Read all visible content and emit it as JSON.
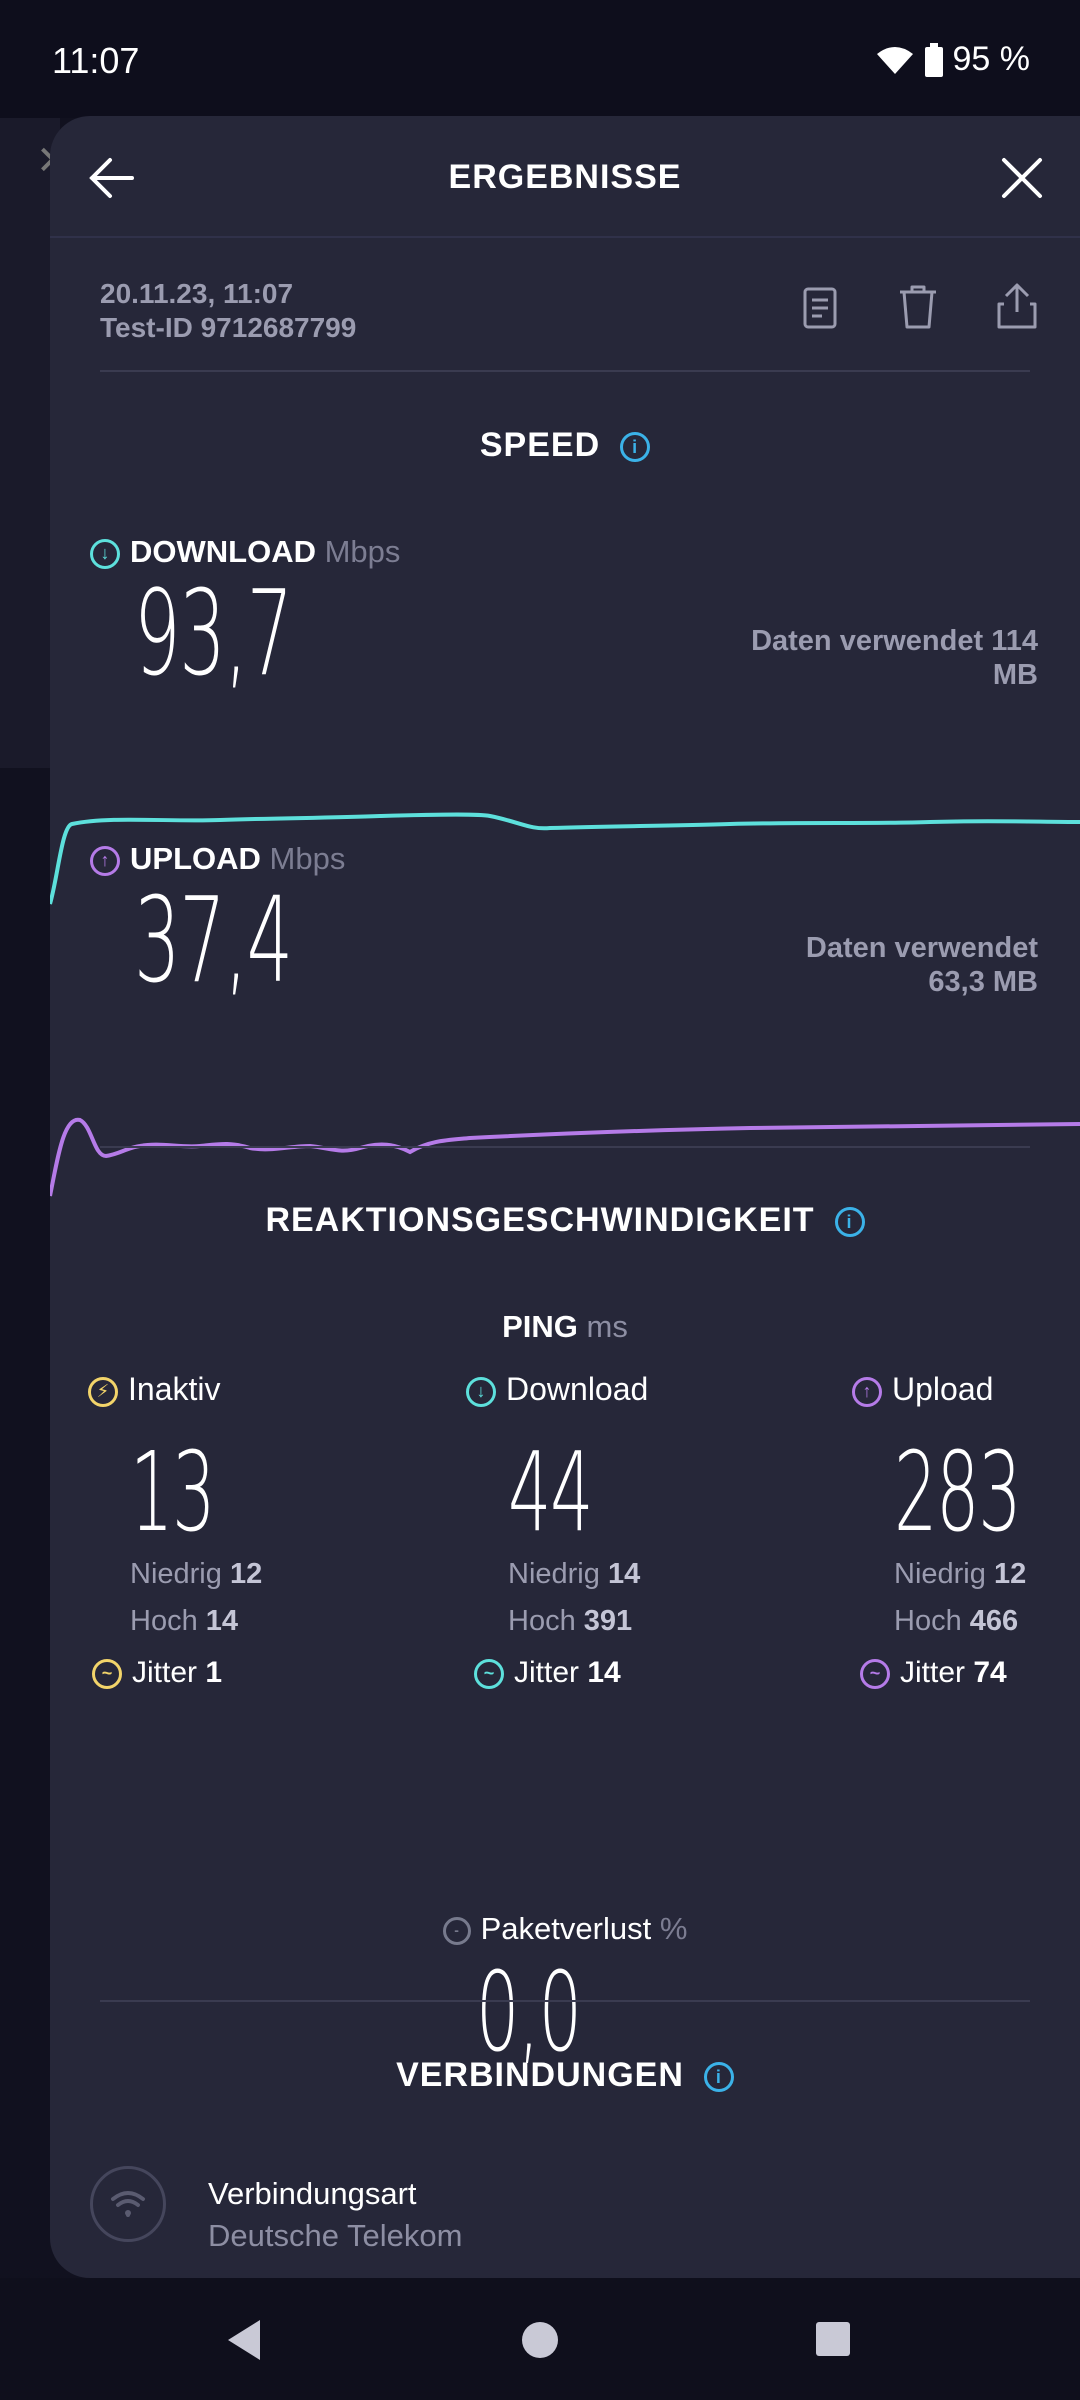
{
  "status": {
    "time": "11:07",
    "battery": "95 %"
  },
  "header": {
    "title": "ERGEBNISSE"
  },
  "meta": {
    "date": "20.11.23, 11:07",
    "test_id": "Test-ID 9712687799"
  },
  "speed": {
    "title": "SPEED",
    "download": {
      "label": "DOWNLOAD",
      "unit": "Mbps",
      "value": "93,7",
      "data_used": "Daten verwendet 114",
      "data_used_2": "MB",
      "color": "#5de0dc"
    },
    "upload": {
      "label": "UPLOAD",
      "unit": "Mbps",
      "value": "37,4",
      "data_used": "Daten verwendet",
      "data_used_2": "63,3 MB",
      "color": "#b57be8"
    }
  },
  "reaction": {
    "title": "REAKTIONSGESCHWINDIGKEIT",
    "ping_label": "PING",
    "ping_unit": "ms",
    "columns": [
      {
        "label": "Inaktiv",
        "value": "13",
        "low_label": "Niedrig",
        "low": "12",
        "high_label": "Hoch",
        "high": "14",
        "jitter_label": "Jitter",
        "jitter": "1",
        "color": "#f2d46a"
      },
      {
        "label": "Download",
        "value": "44",
        "low_label": "Niedrig",
        "low": "14",
        "high_label": "Hoch",
        "high": "391",
        "jitter_label": "Jitter",
        "jitter": "14",
        "color": "#5de0dc"
      },
      {
        "label": "Upload",
        "value": "283",
        "low_label": "Niedrig",
        "low": "12",
        "high_label": "Hoch",
        "high": "466",
        "jitter_label": "Jitter",
        "jitter": "74",
        "color": "#b57be8"
      }
    ],
    "packet_loss_label": "Paketverlust",
    "packet_loss_unit": "%",
    "packet_loss_value": "0,0"
  },
  "connections": {
    "title": "VERBINDUNGEN",
    "type_label": "Verbindungsart",
    "provider": "Deutsche Telekom"
  }
}
